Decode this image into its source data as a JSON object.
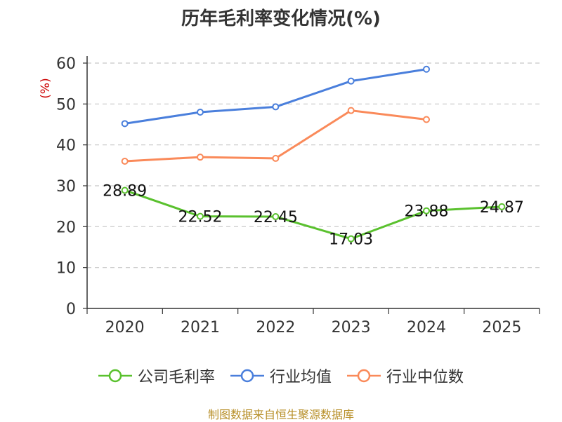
{
  "chart_title": "历年毛利率变化情况(%)",
  "source_text": "制图数据来自恒生聚源数据库",
  "chart_data": {
    "type": "line",
    "title": "历年毛利率变化情况(%)",
    "ylabel": "(%)",
    "xlabel": "",
    "categories": [
      "2020",
      "2021",
      "2022",
      "2023",
      "2024",
      "2025"
    ],
    "ylim": [
      0,
      60
    ],
    "yticks": [
      0,
      10,
      20,
      30,
      40,
      50,
      60
    ],
    "grid": true,
    "legend_position": "bottom",
    "series": [
      {
        "name": "公司毛利率",
        "color": "#5ac12e",
        "values": [
          28.89,
          22.52,
          22.45,
          17.03,
          23.88,
          24.87
        ],
        "labels": [
          "28.89",
          "22.52",
          "22.45",
          "17.03",
          "23.88",
          "24.87"
        ],
        "show_labels": true
      },
      {
        "name": "行业均值",
        "color": "#4a7fdc",
        "values": [
          45.2,
          48.0,
          49.3,
          55.6,
          58.5,
          null
        ],
        "show_labels": false
      },
      {
        "name": "行业中位数",
        "color": "#fa8a5a",
        "values": [
          36.0,
          37.0,
          36.7,
          48.4,
          46.2,
          null
        ],
        "show_labels": false
      }
    ]
  }
}
